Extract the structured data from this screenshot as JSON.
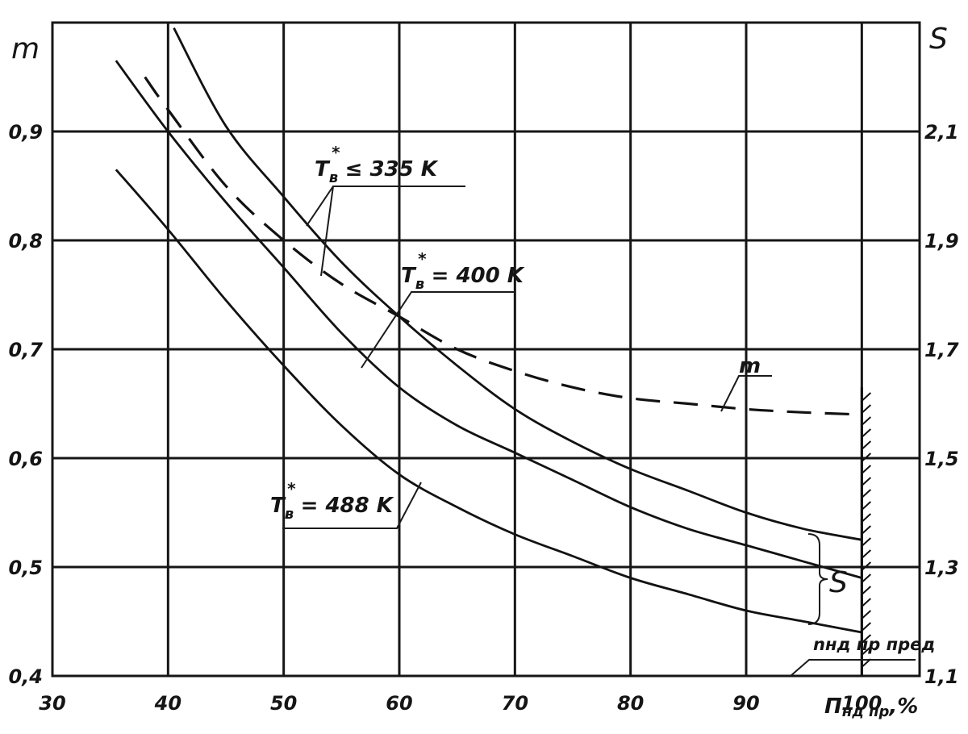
{
  "chart_data": {
    "type": "line",
    "title": "",
    "x_axis": {
      "label_main": "П",
      "label_sub": "нд пр",
      "label_tail": ",%",
      "range": [
        30,
        105
      ],
      "ticks": [
        30,
        40,
        50,
        60,
        70,
        80,
        90,
        100
      ]
    },
    "y_left": {
      "label": "m",
      "range": [
        0.4,
        1.0
      ],
      "ticks": [
        {
          "v": 0.4,
          "t": "0,4"
        },
        {
          "v": 0.5,
          "t": "0,5"
        },
        {
          "v": 0.6,
          "t": "0,6"
        },
        {
          "v": 0.7,
          "t": "0,7"
        },
        {
          "v": 0.8,
          "t": "0,8"
        },
        {
          "v": 0.9,
          "t": "0,9"
        }
      ]
    },
    "y_right": {
      "label": "S",
      "range": [
        1.1,
        2.3
      ],
      "ticks": [
        {
          "v": 1.1,
          "t": "1,1"
        },
        {
          "v": 1.3,
          "t": "1,3"
        },
        {
          "v": 1.5,
          "t": "1,5"
        },
        {
          "v": 1.7,
          "t": "1,7"
        },
        {
          "v": 1.9,
          "t": "1,9"
        },
        {
          "v": 2.1,
          "t": "2,1"
        }
      ]
    },
    "grid": true,
    "series": [
      {
        "name": "T*в ≤ 335 K",
        "axis": "right",
        "style": "solid",
        "x": [
          40.5,
          45,
          50,
          55,
          60,
          65,
          70,
          75,
          80,
          85,
          90,
          95,
          100
        ],
        "y": [
          2.29,
          2.11,
          1.98,
          1.86,
          1.76,
          1.67,
          1.59,
          1.53,
          1.48,
          1.44,
          1.4,
          1.37,
          1.35
        ]
      },
      {
        "name": "T*в = 400 K",
        "axis": "right",
        "style": "solid",
        "x": [
          35.5,
          40,
          45,
          50,
          55,
          60,
          65,
          70,
          75,
          80,
          85,
          90,
          95,
          100
        ],
        "y": [
          2.23,
          2.1,
          1.97,
          1.85,
          1.73,
          1.63,
          1.56,
          1.51,
          1.46,
          1.41,
          1.37,
          1.34,
          1.31,
          1.28
        ]
      },
      {
        "name": "T*в = 488 K",
        "axis": "right",
        "style": "solid",
        "x": [
          35.5,
          40,
          45,
          50,
          55,
          60,
          65,
          70,
          75,
          80,
          85,
          90,
          95,
          100
        ],
        "y": [
          2.03,
          1.92,
          1.79,
          1.67,
          1.56,
          1.47,
          1.41,
          1.36,
          1.32,
          1.28,
          1.25,
          1.22,
          1.2,
          1.18
        ]
      },
      {
        "name": "m",
        "axis": "left",
        "style": "dashed",
        "x": [
          38,
          40,
          45,
          50,
          55,
          60,
          65,
          70,
          75,
          80,
          85,
          90,
          95,
          100
        ],
        "y": [
          0.95,
          0.92,
          0.85,
          0.8,
          0.76,
          0.73,
          0.7,
          0.68,
          0.665,
          0.655,
          0.65,
          0.645,
          0.642,
          0.64
        ]
      }
    ],
    "annotations": {
      "t335_main": "T",
      "t335_sub": "в",
      "t335_sup": "*",
      "t335_rest": "≤ 335 K",
      "t400_main": "T",
      "t400_sub": "в",
      "t400_sup": "*",
      "t400_rest": "= 400 K",
      "t488_main": "T",
      "t488_sub": "в",
      "t488_sup": "*",
      "t488_rest": "= 488 K",
      "m_label": "m",
      "s_label": "S",
      "limit_label": "nнд пр пред"
    }
  }
}
